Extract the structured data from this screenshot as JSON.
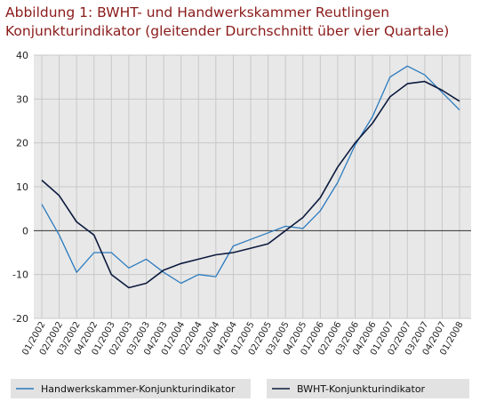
{
  "title_line1": "Abbildung 1: BWHT- und Handwerkskammer  Reutlingen",
  "title_line2": "Konjunkturindikator (gleitender Durchschnitt über vier Quartale)",
  "colors": {
    "title": "#8b1a1a",
    "series_hwk": "#2b7bbf",
    "series_bwht": "#0d1b3e",
    "grid": "#c8c8c8",
    "plot_bg": "#e8e8e8",
    "legend_bar": "#e2e2e2"
  },
  "chart_data": {
    "type": "line",
    "categories": [
      "01/2002",
      "02/2002",
      "03/2002",
      "04/2002",
      "01/2003",
      "02/2003",
      "03/2003",
      "04/2003",
      "01/2004",
      "02/2004",
      "03/2004",
      "04/2004",
      "01/2005",
      "02/2005",
      "03/2005",
      "04/2005",
      "01/2006",
      "02/2006",
      "03/2006",
      "04/2006",
      "01/2007",
      "02/2007",
      "03/2007",
      "04/2007",
      "01/2008"
    ],
    "ylim": [
      -20,
      40
    ],
    "yticks": [
      -20,
      -10,
      0,
      10,
      20,
      30,
      40
    ],
    "ytick_labels": [
      "-20",
      "-10",
      "0",
      "10",
      "20",
      "30",
      "40"
    ],
    "grid": true,
    "zero_line": true,
    "legend_position": "bottom",
    "series": [
      {
        "name": "Handwerkskammer-Konjunkturindikator",
        "values": [
          6,
          -1,
          -9.5,
          -5,
          -5,
          -8.5,
          -6.5,
          -9.5,
          -12,
          -10,
          -10.5,
          -3.5,
          -2,
          -0.5,
          1,
          0.5,
          4.5,
          11,
          19.5,
          26,
          35,
          37.5,
          35.5,
          31.5,
          27.5
        ]
      },
      {
        "name": "BWHT-Konjunkturindikator",
        "values": [
          11.5,
          8,
          2,
          -1,
          -10,
          -13,
          -12,
          -9,
          -7.5,
          -6.5,
          -5.5,
          -5,
          -4,
          -3,
          0,
          3,
          7.5,
          14.5,
          20,
          24.5,
          30.5,
          33.5,
          34,
          32,
          29.5
        ]
      }
    ]
  }
}
